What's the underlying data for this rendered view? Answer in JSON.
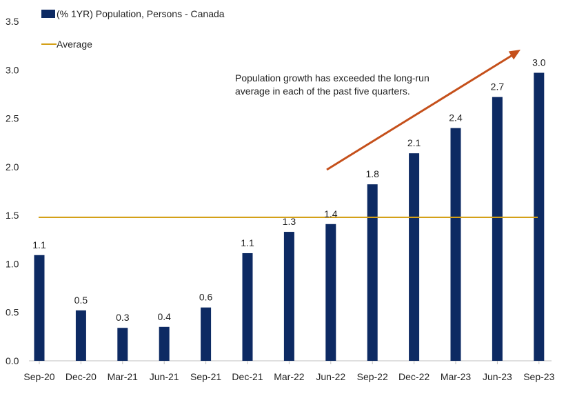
{
  "chart_data": {
    "type": "bar",
    "categories": [
      "Sep-20",
      "Dec-20",
      "Mar-21",
      "Jun-21",
      "Sep-21",
      "Dec-21",
      "Mar-22",
      "Jun-22",
      "Sep-22",
      "Dec-22",
      "Mar-23",
      "Jun-23",
      "Sep-23"
    ],
    "series": [
      {
        "name": "(% 1YR) Population, Persons - Canada",
        "values": [
          1.09,
          0.52,
          0.34,
          0.35,
          0.55,
          1.11,
          1.33,
          1.41,
          1.82,
          2.14,
          2.4,
          2.72,
          2.97
        ],
        "labels": [
          "1.1",
          "0.5",
          "0.3",
          "0.4",
          "0.6",
          "1.1",
          "1.3",
          "1.4",
          "1.8",
          "2.1",
          "2.4",
          "2.7",
          "3.0"
        ],
        "color": "#0d2a63"
      }
    ],
    "reference_line": {
      "name": "Average",
      "value": 1.48,
      "color": "#d4a017"
    },
    "yticks": [
      "0.0",
      "0.5",
      "1.0",
      "1.5",
      "2.0",
      "2.5",
      "3.0",
      "3.5"
    ],
    "ylim": [
      0,
      3.5
    ],
    "grid": false,
    "legend_position": "top-left",
    "annotation": {
      "lines": [
        "Population growth has exceeded the long-run",
        "average in each of the past five quarters."
      ],
      "arrow_color": "#c5501b"
    }
  }
}
